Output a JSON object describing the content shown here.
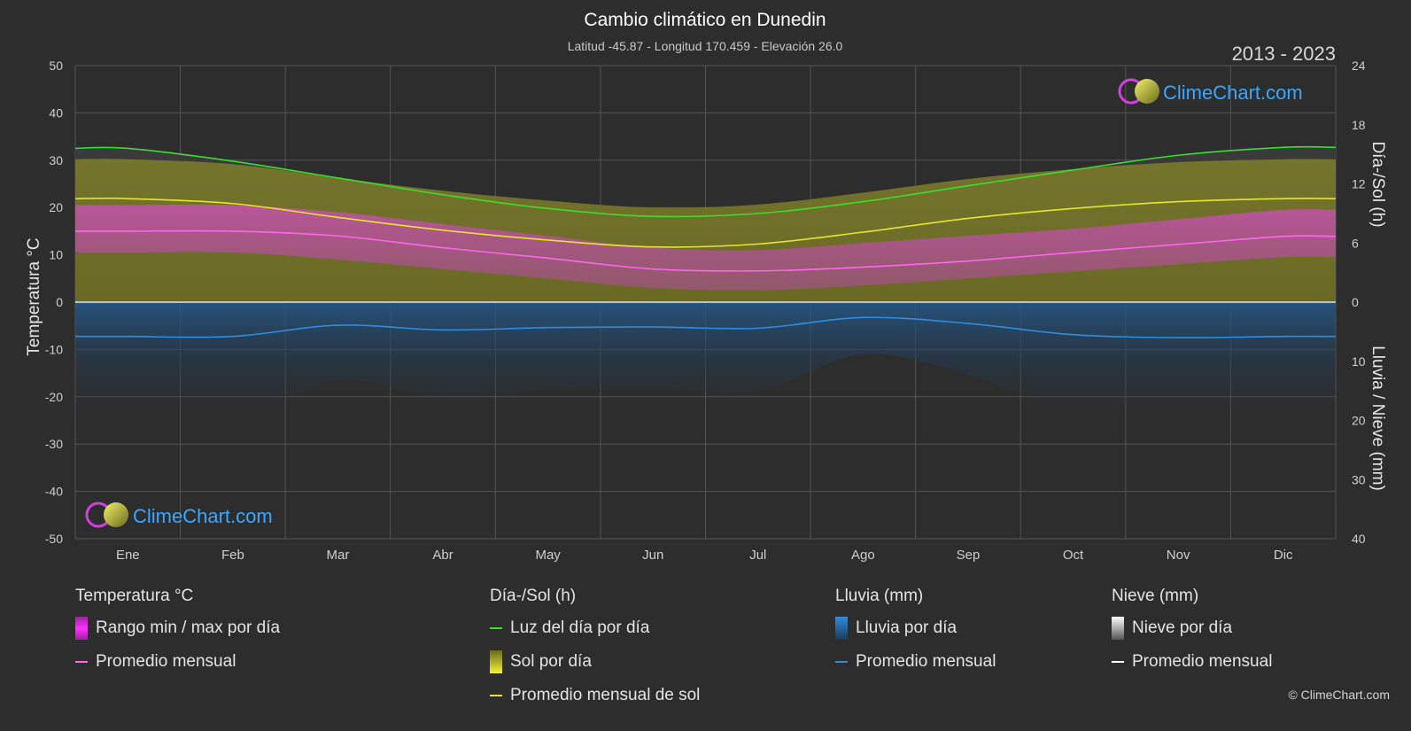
{
  "header": {
    "title": "Cambio climático en Dunedin",
    "subtitle": "Latitud -45.87 - Longitud 170.459 - Elevación 26.0",
    "range": "2013 - 2023"
  },
  "logo": {
    "text": "ClimeChart.com"
  },
  "copyright": "© ClimeChart.com",
  "chart_data": {
    "type": "area",
    "categories": [
      "Ene",
      "Feb",
      "Mar",
      "Abr",
      "May",
      "Jun",
      "Jul",
      "Ago",
      "Sep",
      "Oct",
      "Nov",
      "Dic"
    ],
    "axes": {
      "left": {
        "label": "Temperatura °C",
        "ticks": [
          "50",
          "40",
          "30",
          "20",
          "10",
          "0",
          "-10",
          "-20",
          "-30",
          "-40",
          "-50"
        ],
        "range": [
          -50,
          50
        ]
      },
      "right_top": {
        "label": "Día-/Sol (h)",
        "ticks": [
          "24",
          "18",
          "12",
          "6",
          "0"
        ],
        "range": [
          0,
          24
        ]
      },
      "right_bottom": {
        "label": "Lluvia / Nieve (mm)",
        "ticks": [
          "0",
          "10",
          "20",
          "30",
          "40"
        ],
        "range": [
          0,
          40
        ]
      }
    },
    "series": [
      {
        "name": "Luz del día por día",
        "unit": "h",
        "color": "#3ddc2e",
        "values": [
          15.6,
          14.3,
          12.6,
          10.9,
          9.5,
          8.7,
          9.0,
          10.2,
          11.8,
          13.4,
          14.9,
          15.7
        ]
      },
      {
        "name": "Promedio mensual de sol",
        "unit": "h",
        "color": "#e6e62a",
        "values": [
          10.5,
          10.0,
          8.6,
          7.3,
          6.3,
          5.6,
          5.9,
          7.1,
          8.5,
          9.5,
          10.2,
          10.5
        ]
      },
      {
        "name": "Promedio mensual",
        "group": "Temperatura °C",
        "unit": "°C",
        "color": "#ff66ee",
        "values": [
          15.0,
          15.0,
          14.0,
          11.5,
          9.3,
          7.0,
          6.6,
          7.4,
          8.7,
          10.5,
          12.2,
          13.9
        ]
      },
      {
        "name": "Rango min / max por día",
        "unit": "°C",
        "color": "#e040d0",
        "min": [
          10.5,
          10.5,
          9.0,
          7.0,
          5.0,
          3.0,
          2.5,
          3.5,
          5.0,
          6.5,
          8.0,
          9.5
        ],
        "max": [
          20.5,
          20.5,
          19.0,
          16.5,
          14.0,
          11.5,
          11.0,
          12.5,
          14.0,
          15.5,
          17.5,
          19.5
        ]
      },
      {
        "name": "Promedio mensual",
        "group": "Lluvia (mm)",
        "unit": "mm",
        "color": "#2f8de0",
        "values": [
          5.8,
          5.8,
          3.9,
          4.7,
          4.3,
          4.2,
          4.4,
          2.6,
          3.6,
          5.5,
          6.0,
          5.8
        ]
      }
    ]
  },
  "legend": {
    "temp": {
      "title": "Temperatura °C",
      "range": "Rango min / max por día",
      "avg": "Promedio mensual"
    },
    "sun": {
      "title": "Día-/Sol (h)",
      "daylight": "Luz del día por día",
      "sunday": "Sol por día",
      "sunavg": "Promedio mensual de sol"
    },
    "rain": {
      "title": "Lluvia (mm)",
      "rainday": "Lluvia por día",
      "avg": "Promedio mensual"
    },
    "snow": {
      "title": "Nieve (mm)",
      "snowday": "Nieve por día",
      "avg": "Promedio mensual"
    }
  },
  "colors": {
    "background": "#2d2d2d",
    "daylight": "#3ddc2e",
    "sun": "#e6e62a",
    "temp_avg": "#ff66ee",
    "temp_range": "#e040d0",
    "rain": "#2f8de0",
    "snow": "#ffffff"
  }
}
